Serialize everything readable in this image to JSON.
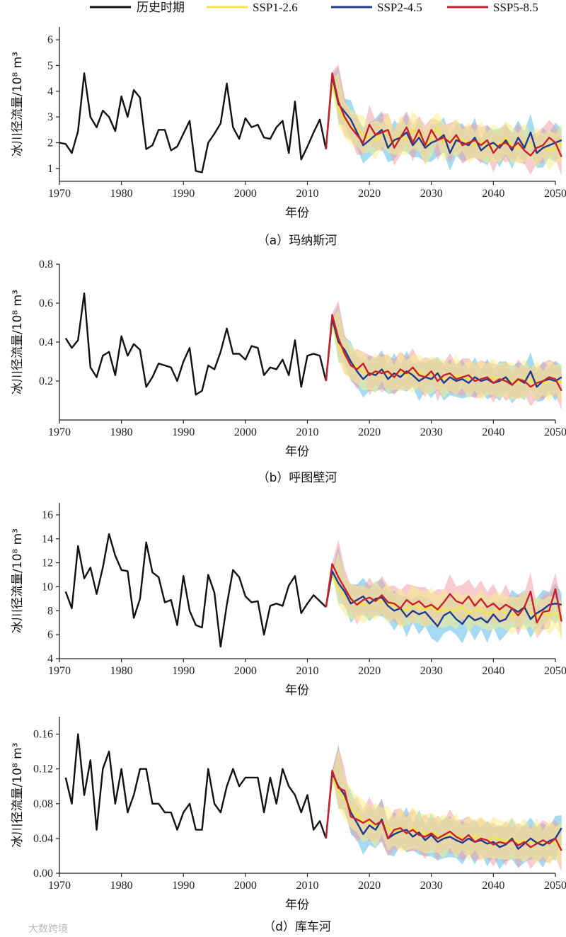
{
  "legend": {
    "historical": "历史时期",
    "ssp126": "SSP1-2.6",
    "ssp245": "SSP2-4.5",
    "ssp585": "SSP5-8.5"
  },
  "colors": {
    "historical": "#111111",
    "ssp126": "#f5e642",
    "ssp245": "#1f3a93",
    "ssp585": "#c8202f",
    "band_ssp126": "#f7ef8a",
    "band_ssp245": "#5bbbe6",
    "band_ssp585": "#f0a0a8"
  },
  "watermark": "大数跨境",
  "chart_data": [
    {
      "type": "line",
      "id": "a",
      "caption": "（a）玛纳斯河",
      "xlabel": "年份",
      "ylabel": "冰川径流量/10⁸ m³",
      "xlim": [
        1970,
        2050
      ],
      "ylim": [
        0.5,
        6.5
      ],
      "xticks": [
        "1970",
        "1980",
        "1990",
        "2000",
        "2010",
        "2020",
        "2030",
        "2040",
        "2050"
      ],
      "yticks": [
        "1",
        "2",
        "3",
        "4",
        "5",
        "6"
      ],
      "hist_x_start": 1970,
      "hist": [
        2.0,
        1.95,
        1.6,
        2.45,
        4.7,
        3.0,
        2.6,
        3.25,
        3.0,
        2.45,
        3.8,
        3.0,
        4.05,
        3.75,
        1.75,
        1.9,
        2.5,
        2.5,
        1.7,
        1.85,
        2.35,
        2.85,
        0.9,
        0.85,
        2.0,
        2.35,
        2.75,
        4.3,
        2.6,
        2.15,
        2.95,
        2.6,
        2.7,
        2.2,
        2.15,
        2.6,
        2.85,
        1.6,
        3.6,
        1.35,
        1.85,
        2.4,
        2.9,
        1.75
      ],
      "proj_x_start": 2014,
      "ssp126": [
        4.3,
        3.3,
        2.9,
        2.6,
        2.5,
        2.3,
        2.2,
        2.1,
        2.3,
        2.4,
        2.0,
        2.3,
        2.1,
        2.5,
        2.3,
        1.8,
        2.2,
        2.6,
        2.0,
        2.1,
        2.2,
        2.1,
        2.0,
        1.9,
        2.1,
        1.8,
        2.0,
        1.9,
        2.2,
        1.9,
        1.8,
        2.0,
        1.9,
        1.8,
        1.9,
        1.7,
        1.8,
        2.0
      ],
      "ssp245": [
        4.6,
        3.5,
        3.2,
        2.9,
        2.4,
        1.9,
        2.1,
        2.3,
        2.5,
        1.8,
        2.1,
        2.2,
        2.4,
        1.9,
        2.2,
        1.8,
        2.0,
        2.1,
        2.3,
        1.6,
        2.1,
        2.0,
        1.9,
        2.2,
        1.7,
        1.9,
        2.0,
        1.8,
        2.1,
        1.7,
        2.2,
        1.8,
        2.4,
        1.6,
        1.8,
        1.9,
        2.0,
        2.1
      ],
      "ssp585": [
        4.7,
        3.6,
        3.0,
        2.6,
        2.3,
        2.0,
        2.7,
        2.3,
        2.4,
        2.5,
        1.8,
        2.2,
        2.6,
        2.0,
        2.5,
        1.9,
        2.5,
        2.1,
        2.2,
        2.0,
        2.3,
        1.9,
        2.0,
        2.1,
        1.9,
        2.1,
        1.6,
        1.9,
        2.0,
        1.8,
        2.0,
        1.7,
        1.5,
        1.8,
        1.9,
        2.2,
        2.0,
        1.45
      ],
      "band_width": 0.6
    },
    {
      "type": "line",
      "id": "b",
      "caption": "（b）呼图壁河",
      "xlabel": "年份",
      "ylabel": "冰川径流量/10⁸ m³",
      "xlim": [
        1970,
        2050
      ],
      "ylim": [
        0.0,
        0.8
      ],
      "xticks": [
        "1970",
        "1980",
        "1990",
        "2000",
        "2010",
        "2020",
        "2030",
        "2040",
        "2050"
      ],
      "yticks": [
        "0.2",
        "0.4",
        "0.6",
        "0.8"
      ],
      "hist_x_start": 1971,
      "hist": [
        0.42,
        0.37,
        0.41,
        0.65,
        0.27,
        0.22,
        0.33,
        0.35,
        0.23,
        0.43,
        0.33,
        0.39,
        0.36,
        0.17,
        0.22,
        0.29,
        0.28,
        0.27,
        0.2,
        0.3,
        0.37,
        0.13,
        0.15,
        0.28,
        0.26,
        0.35,
        0.47,
        0.34,
        0.34,
        0.31,
        0.38,
        0.37,
        0.23,
        0.27,
        0.26,
        0.31,
        0.23,
        0.41,
        0.17,
        0.33,
        0.34,
        0.33,
        0.2
      ],
      "proj_x_start": 2014,
      "ssp126": [
        0.5,
        0.38,
        0.33,
        0.3,
        0.27,
        0.25,
        0.23,
        0.24,
        0.26,
        0.24,
        0.22,
        0.25,
        0.23,
        0.24,
        0.25,
        0.22,
        0.23,
        0.24,
        0.21,
        0.22,
        0.23,
        0.22,
        0.21,
        0.22,
        0.2,
        0.21,
        0.22,
        0.2,
        0.21,
        0.2,
        0.19,
        0.21,
        0.2,
        0.2,
        0.19,
        0.2,
        0.21,
        0.19
      ],
      "ssp245": [
        0.52,
        0.4,
        0.36,
        0.3,
        0.25,
        0.21,
        0.24,
        0.23,
        0.26,
        0.21,
        0.24,
        0.22,
        0.25,
        0.23,
        0.2,
        0.22,
        0.21,
        0.24,
        0.19,
        0.22,
        0.2,
        0.21,
        0.19,
        0.22,
        0.2,
        0.21,
        0.19,
        0.2,
        0.22,
        0.18,
        0.21,
        0.19,
        0.25,
        0.17,
        0.2,
        0.21,
        0.2,
        0.22
      ],
      "ssp585": [
        0.54,
        0.42,
        0.34,
        0.28,
        0.26,
        0.29,
        0.23,
        0.25,
        0.24,
        0.25,
        0.22,
        0.26,
        0.24,
        0.27,
        0.23,
        0.22,
        0.25,
        0.2,
        0.23,
        0.24,
        0.21,
        0.22,
        0.23,
        0.2,
        0.21,
        0.22,
        0.19,
        0.21,
        0.2,
        0.18,
        0.21,
        0.2,
        0.17,
        0.19,
        0.2,
        0.22,
        0.21,
        0.15
      ],
      "band_width": 0.08
    },
    {
      "type": "line",
      "id": "c",
      "caption": "",
      "xlabel": "年份",
      "ylabel": "冰川径流量/10⁸ m³",
      "xlim": [
        1970,
        2050
      ],
      "ylim": [
        4,
        17
      ],
      "xticks": [
        "1970",
        "1980",
        "1990",
        "2000",
        "2010",
        "2020",
        "2030",
        "2040",
        "2050"
      ],
      "yticks": [
        "4",
        "6",
        "8",
        "10",
        "12",
        "14",
        "16"
      ],
      "hist_x_start": 1971,
      "hist": [
        9.6,
        8.2,
        13.4,
        10.7,
        11.6,
        9.4,
        11.6,
        14.4,
        12.6,
        11.4,
        11.3,
        7.4,
        9.0,
        13.7,
        11.2,
        10.8,
        8.7,
        8.9,
        6.8,
        10.9,
        8.0,
        6.8,
        6.6,
        11.0,
        9.5,
        5.0,
        8.5,
        11.4,
        10.8,
        9.2,
        8.7,
        8.8,
        6.0,
        8.4,
        8.6,
        8.4,
        10.1,
        10.9,
        7.8,
        8.6,
        9.3,
        8.8,
        8.3
      ],
      "proj_x_start": 2014,
      "ssp126": [
        11.0,
        9.8,
        9.2,
        8.8,
        8.7,
        8.5,
        8.6,
        8.9,
        8.8,
        8.6,
        8.4,
        8.2,
        8.0,
        8.6,
        8.3,
        8.1,
        8.4,
        7.9,
        8.2,
        7.9,
        8.1,
        8.3,
        7.8,
        8.0,
        8.2,
        7.7,
        7.9,
        8.1,
        7.8,
        7.6,
        7.9,
        8.0,
        7.7,
        7.5,
        7.9,
        7.6,
        7.8,
        7.2
      ],
      "ssp245": [
        11.3,
        10.3,
        9.6,
        8.6,
        8.9,
        9.2,
        8.6,
        9.0,
        9.1,
        8.4,
        8.0,
        8.2,
        7.5,
        8.0,
        7.7,
        7.9,
        7.3,
        6.7,
        7.6,
        7.9,
        7.3,
        6.9,
        7.6,
        7.2,
        7.4,
        7.0,
        7.7,
        7.1,
        7.3,
        8.2,
        7.9,
        8.3,
        7.3,
        7.8,
        8.1,
        8.5,
        8.6,
        8.5
      ],
      "ssp585": [
        11.9,
        10.8,
        9.9,
        9.0,
        8.5,
        8.9,
        9.1,
        8.8,
        9.3,
        8.7,
        8.6,
        8.2,
        8.9,
        8.5,
        8.8,
        8.3,
        8.5,
        8.1,
        8.7,
        9.4,
        8.8,
        8.6,
        9.2,
        8.4,
        9.0,
        8.3,
        8.6,
        8.1,
        8.5,
        8.2,
        7.6,
        8.3,
        9.6,
        7.0,
        7.9,
        8.0,
        9.8,
        7.1
      ],
      "band_width": 1.3
    },
    {
      "type": "line",
      "id": "d",
      "caption": "（d）库车河",
      "xlabel": "年份",
      "ylabel": "冰川径流量/10⁸ m³",
      "xlim": [
        1970,
        2050
      ],
      "ylim": [
        0.0,
        0.18
      ],
      "xticks": [
        "1970",
        "1980",
        "1990",
        "2000",
        "2010",
        "2020",
        "2030",
        "2040",
        "2050"
      ],
      "yticks": [
        "0.00",
        "0.04",
        "0.08",
        "0.12",
        "0.16"
      ],
      "hist_x_start": 1971,
      "hist": [
        0.11,
        0.08,
        0.16,
        0.09,
        0.13,
        0.05,
        0.12,
        0.14,
        0.08,
        0.12,
        0.07,
        0.09,
        0.12,
        0.12,
        0.08,
        0.08,
        0.07,
        0.07,
        0.05,
        0.07,
        0.08,
        0.05,
        0.05,
        0.12,
        0.08,
        0.07,
        0.1,
        0.12,
        0.1,
        0.11,
        0.11,
        0.11,
        0.07,
        0.11,
        0.08,
        0.12,
        0.1,
        0.09,
        0.07,
        0.09,
        0.05,
        0.06,
        0.04
      ],
      "proj_x_start": 2014,
      "ssp126": [
        0.11,
        0.095,
        0.085,
        0.075,
        0.068,
        0.06,
        0.058,
        0.055,
        0.06,
        0.052,
        0.048,
        0.05,
        0.045,
        0.052,
        0.048,
        0.045,
        0.047,
        0.044,
        0.042,
        0.046,
        0.043,
        0.041,
        0.04,
        0.044,
        0.04,
        0.038,
        0.041,
        0.039,
        0.037,
        0.04,
        0.036,
        0.038,
        0.035,
        0.037,
        0.034,
        0.036,
        0.035,
        0.034
      ],
      "ssp245": [
        0.115,
        0.1,
        0.09,
        0.07,
        0.058,
        0.045,
        0.055,
        0.05,
        0.062,
        0.04,
        0.045,
        0.048,
        0.05,
        0.042,
        0.047,
        0.038,
        0.044,
        0.036,
        0.04,
        0.042,
        0.038,
        0.035,
        0.04,
        0.036,
        0.038,
        0.034,
        0.036,
        0.03,
        0.033,
        0.04,
        0.028,
        0.034,
        0.04,
        0.035,
        0.032,
        0.037,
        0.04,
        0.052
      ],
      "ssp585": [
        0.118,
        0.098,
        0.095,
        0.065,
        0.062,
        0.058,
        0.062,
        0.056,
        0.06,
        0.04,
        0.05,
        0.052,
        0.046,
        0.05,
        0.044,
        0.042,
        0.046,
        0.04,
        0.044,
        0.048,
        0.042,
        0.038,
        0.044,
        0.036,
        0.04,
        0.038,
        0.033,
        0.036,
        0.034,
        0.038,
        0.032,
        0.036,
        0.03,
        0.034,
        0.038,
        0.034,
        0.04,
        0.026
      ],
      "band_width": 0.02
    }
  ]
}
